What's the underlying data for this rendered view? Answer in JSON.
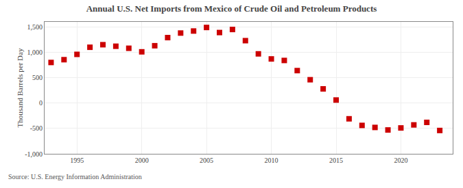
{
  "chart_data": {
    "type": "scatter",
    "title": "Annual U.S. Net Imports from Mexico of Crude Oil and Petroleum Products",
    "ylabel": "Thousand Barrels per Day",
    "annotations": [
      "Source: U.S. Energy Information Administration"
    ],
    "x": [
      1993,
      1994,
      1995,
      1996,
      1997,
      1998,
      1999,
      2000,
      2001,
      2002,
      2003,
      2004,
      2005,
      2006,
      2007,
      2008,
      2009,
      2010,
      2011,
      2012,
      2013,
      2014,
      2015,
      2016,
      2017,
      2018,
      2019,
      2020,
      2021,
      2022,
      2023
    ],
    "values": [
      800,
      855,
      960,
      1100,
      1150,
      1120,
      1080,
      1010,
      1130,
      1290,
      1380,
      1420,
      1490,
      1390,
      1450,
      1230,
      970,
      870,
      840,
      640,
      460,
      280,
      60,
      -310,
      -440,
      -480,
      -530,
      -490,
      -430,
      -380,
      -540
    ],
    "color": "#cc0000",
    "marker": "square",
    "xlim": [
      1992.5,
      2024
    ],
    "xticks": [
      1995,
      2000,
      2005,
      2010,
      2015,
      2020
    ],
    "ylim": [
      -1000,
      1600
    ],
    "yticks": [
      {
        "value": -1000,
        "label": "-1,000"
      },
      -500,
      0,
      500,
      {
        "value": 1000,
        "label": "1,000"
      },
      {
        "value": 1500,
        "label": "1,500"
      }
    ],
    "grid": true
  }
}
